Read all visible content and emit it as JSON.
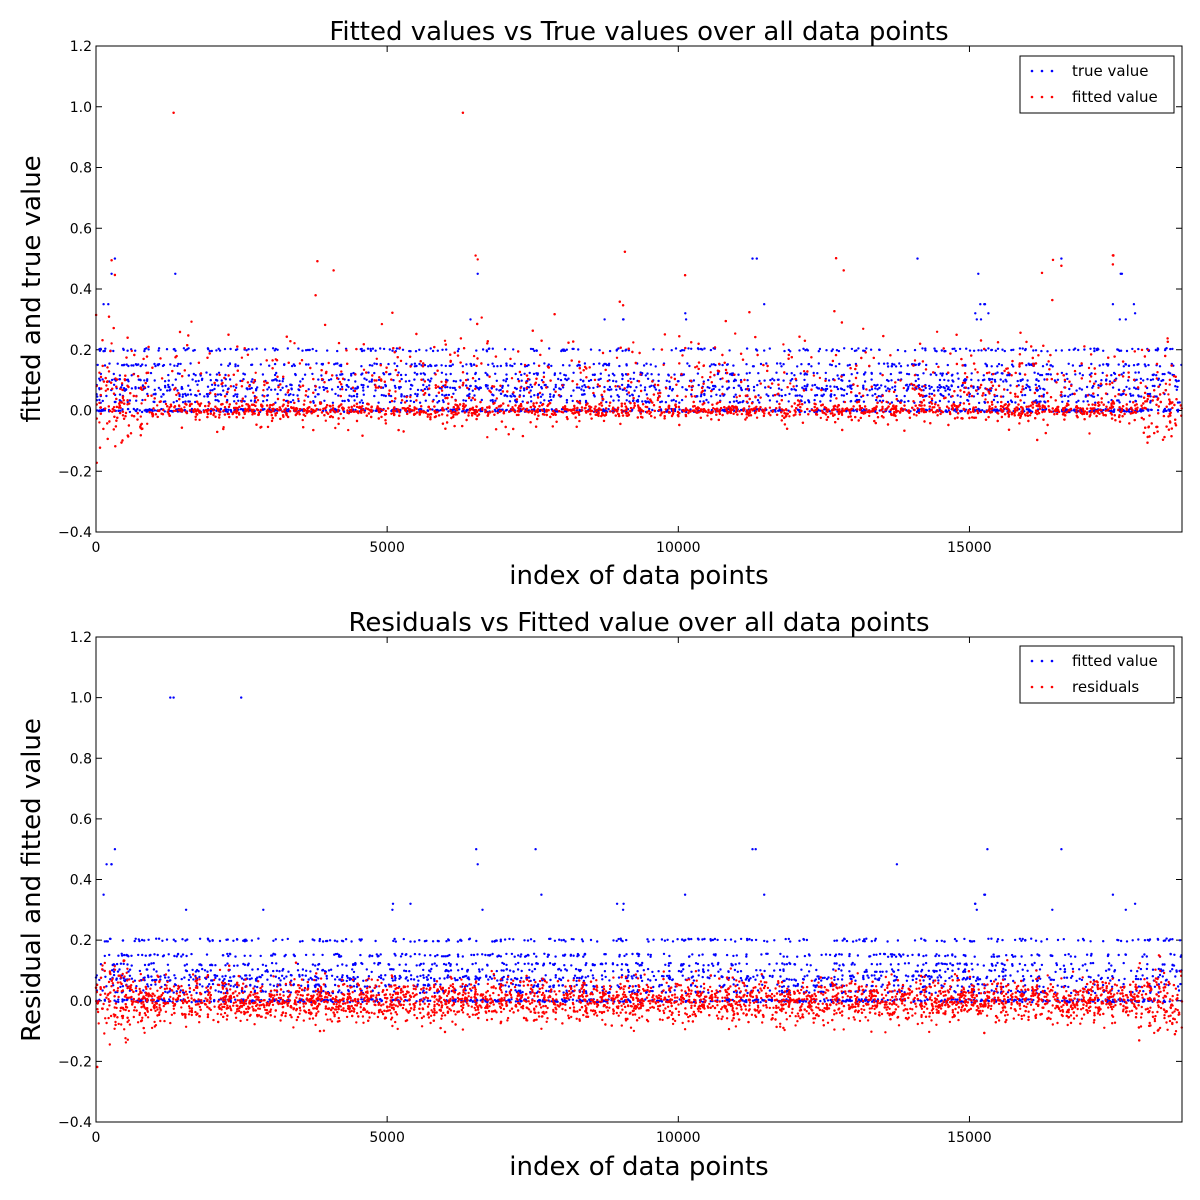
{
  "chart_data": [
    {
      "type": "scatter",
      "title": "Fitted values vs True values over all data points",
      "xlabel": "index of data points",
      "ylabel": "fitted and true value",
      "xlim": [
        0,
        18650
      ],
      "ylim": [
        -0.4,
        1.2
      ],
      "xticks": [
        0,
        5000,
        10000,
        15000
      ],
      "xtick_labels": [
        "0",
        "5000",
        "10000",
        "15000"
      ],
      "yticks": [
        -0.4,
        -0.2,
        0.0,
        0.2,
        0.4,
        0.6,
        0.8,
        1.0,
        1.2
      ],
      "ytick_labels": [
        "−0.4",
        "−0.2",
        "0.0",
        "0.2",
        "0.4",
        "0.6",
        "0.8",
        "1.0",
        "1.2"
      ],
      "grid": false,
      "legend_position": "top-right",
      "series": [
        {
          "name": "true value",
          "color": "#0000ff"
        },
        {
          "name": "fitted value",
          "color": "#ff0000"
        }
      ]
    },
    {
      "type": "scatter",
      "title": "Residuals vs Fitted value over all data points",
      "xlabel": "index of data points",
      "ylabel": "Residual and fitted value",
      "xlim": [
        0,
        18650
      ],
      "ylim": [
        -0.4,
        1.2
      ],
      "xticks": [
        0,
        5000,
        10000,
        15000
      ],
      "xtick_labels": [
        "0",
        "5000",
        "10000",
        "15000"
      ],
      "yticks": [
        -0.4,
        -0.2,
        0.0,
        0.2,
        0.4,
        0.6,
        0.8,
        1.0,
        1.2
      ],
      "ytick_labels": [
        "−0.4",
        "−0.2",
        "0.0",
        "0.2",
        "0.4",
        "0.6",
        "0.8",
        "1.0",
        "1.2"
      ],
      "grid": false,
      "legend_position": "top-right",
      "series": [
        {
          "name": "fitted value",
          "color": "#0000ff"
        },
        {
          "name": "residuals",
          "color": "#ff0000"
        }
      ]
    }
  ]
}
